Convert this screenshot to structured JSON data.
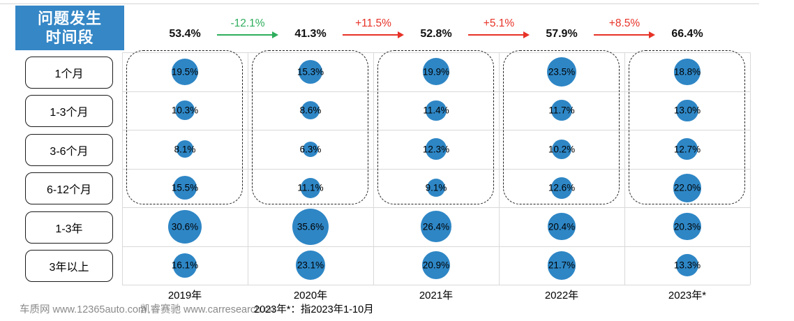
{
  "header": {
    "title_line1": "问题发生",
    "title_line2": "时间段"
  },
  "chart_data": {
    "type": "scatter",
    "subtype": "bubble-matrix",
    "title": "问题发生时间段",
    "row_labels": [
      "1个月",
      "1-3个月",
      "3-6个月",
      "6-12个月",
      "1-3年",
      "3年以上"
    ],
    "categories": [
      "2019年",
      "2020年",
      "2021年",
      "2022年",
      "2023年*"
    ],
    "series": [
      {
        "name": "2019年",
        "values": [
          19.5,
          10.3,
          8.1,
          15.5,
          30.6,
          16.1
        ]
      },
      {
        "name": "2020年",
        "values": [
          15.3,
          8.6,
          6.3,
          11.1,
          35.6,
          23.1
        ]
      },
      {
        "name": "2021年",
        "values": [
          19.9,
          11.4,
          12.3,
          9.1,
          26.4,
          20.9
        ]
      },
      {
        "name": "2022年",
        "values": [
          23.5,
          11.7,
          10.2,
          12.6,
          20.4,
          21.7
        ]
      },
      {
        "name": "2023年*",
        "values": [
          18.8,
          13.0,
          12.7,
          22.0,
          20.3,
          13.3
        ]
      }
    ],
    "value_suffix": "%",
    "column_totals": [
      "53.4%",
      "41.3%",
      "52.8%",
      "57.9%",
      "66.4%"
    ],
    "total_changes": [
      {
        "label": "-12.1%",
        "direction": "down"
      },
      {
        "label": "+11.5%",
        "direction": "up"
      },
      {
        "label": "+5.1%",
        "direction": "up"
      },
      {
        "label": "+8.5%",
        "direction": "up"
      }
    ],
    "dashed_group_rows": [
      "1个月",
      "1-3个月",
      "3-6个月",
      "6-12个月"
    ],
    "grid": true,
    "legend_position": "none"
  },
  "footer": {
    "source_left": "车质网 www.12365auto.com",
    "source_center": "凯睿赛驰 www.carresearch.cn",
    "note": "2023年*：指2023年1-10月"
  },
  "colors": {
    "header_bg": "#3587c6",
    "bubble": "#2e86c5",
    "increase": "#e73227",
    "decrease": "#2ead5c",
    "gridline": "#d9d9d9",
    "source_text": "#8a8a8a",
    "note_text": "#000000"
  }
}
